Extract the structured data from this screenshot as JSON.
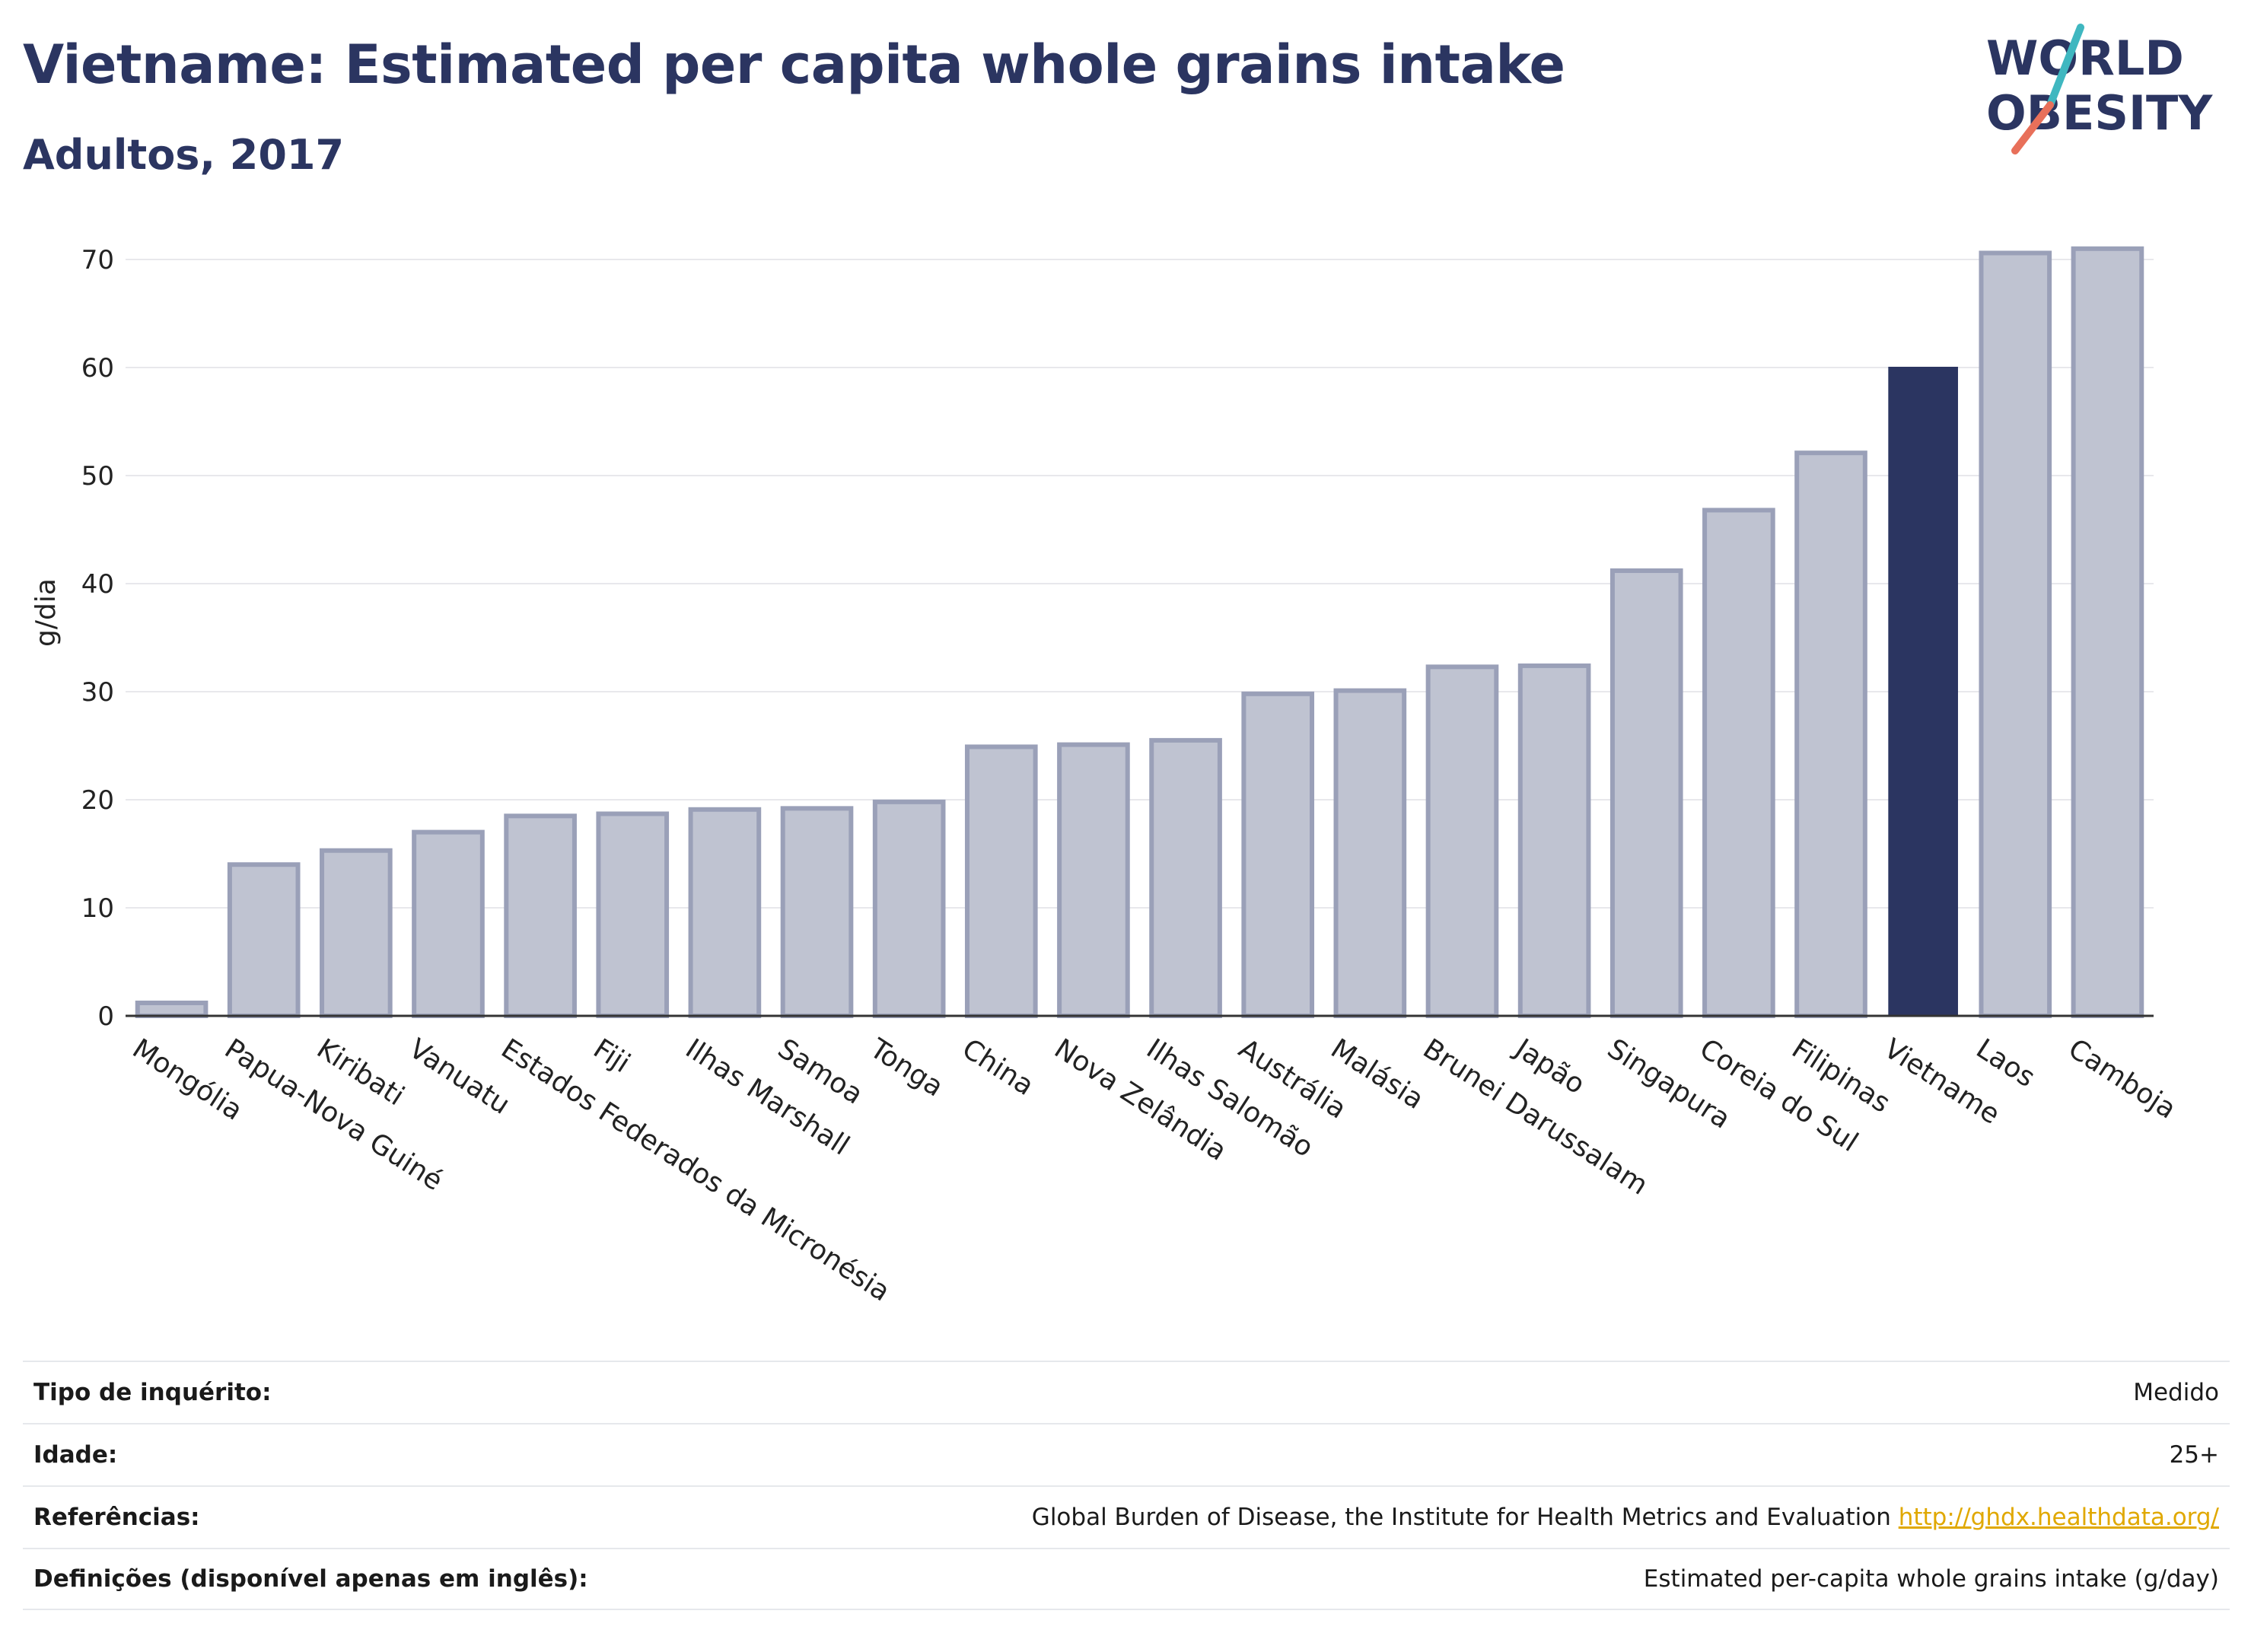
{
  "header": {
    "title": "Vietname: Estimated per capita whole grains intake",
    "subtitle": "Adultos, 2017"
  },
  "logo": {
    "line1": "WORLD",
    "line2": "OBESITY",
    "colors": {
      "text": "#2b3561",
      "teal": "#3fb7c0",
      "coral": "#e8705a"
    }
  },
  "colors": {
    "bar": "#bfc3d1",
    "bar_border": "#9aa0b8",
    "highlight": "#2b3561",
    "grid": "#e8e8ec",
    "axis": "#333333"
  },
  "chart_data": {
    "type": "bar",
    "title": "Vietname: Estimated per capita whole grains intake",
    "subtitle": "Adultos, 2017",
    "xlabel": "",
    "ylabel": "g/dia",
    "ylim": [
      0,
      74
    ],
    "yticks": [
      0,
      10,
      20,
      30,
      40,
      50,
      60,
      70
    ],
    "grid": true,
    "highlight": "Vietname",
    "categories": [
      "Mongólia",
      "Papua-Nova Guiné",
      "Kiribati",
      "Vanuatu",
      "Estados Federados da Micronésia",
      "Fiji",
      "Ilhas Marshall",
      "Samoa",
      "Tonga",
      "China",
      "Nova Zelândia",
      "Ilhas Salomão",
      "Austrália",
      "Malásia",
      "Brunei Darussalam",
      "Japão",
      "Singapura",
      "Coreia do Sul",
      "Filipinas",
      "Vietname",
      "Laos",
      "Camboja"
    ],
    "values": [
      1.2,
      14.0,
      15.3,
      17.0,
      18.5,
      18.7,
      19.1,
      19.2,
      19.8,
      24.9,
      25.1,
      25.5,
      29.8,
      30.1,
      32.3,
      32.4,
      41.2,
      46.8,
      52.1,
      60.0,
      70.6,
      71.0
    ]
  },
  "meta": [
    {
      "label": "Tipo de inquérito:",
      "value": "Medido"
    },
    {
      "label": "Idade:",
      "value": "25+"
    },
    {
      "label": "Referências:",
      "value": "Global Burden of Disease, the Institute for Health Metrics and Evaluation",
      "link": "http://ghdx.healthdata.org/"
    },
    {
      "label": "Definições (disponível apenas em inglês):",
      "value": "Estimated per-capita whole grains intake (g/day)"
    }
  ]
}
